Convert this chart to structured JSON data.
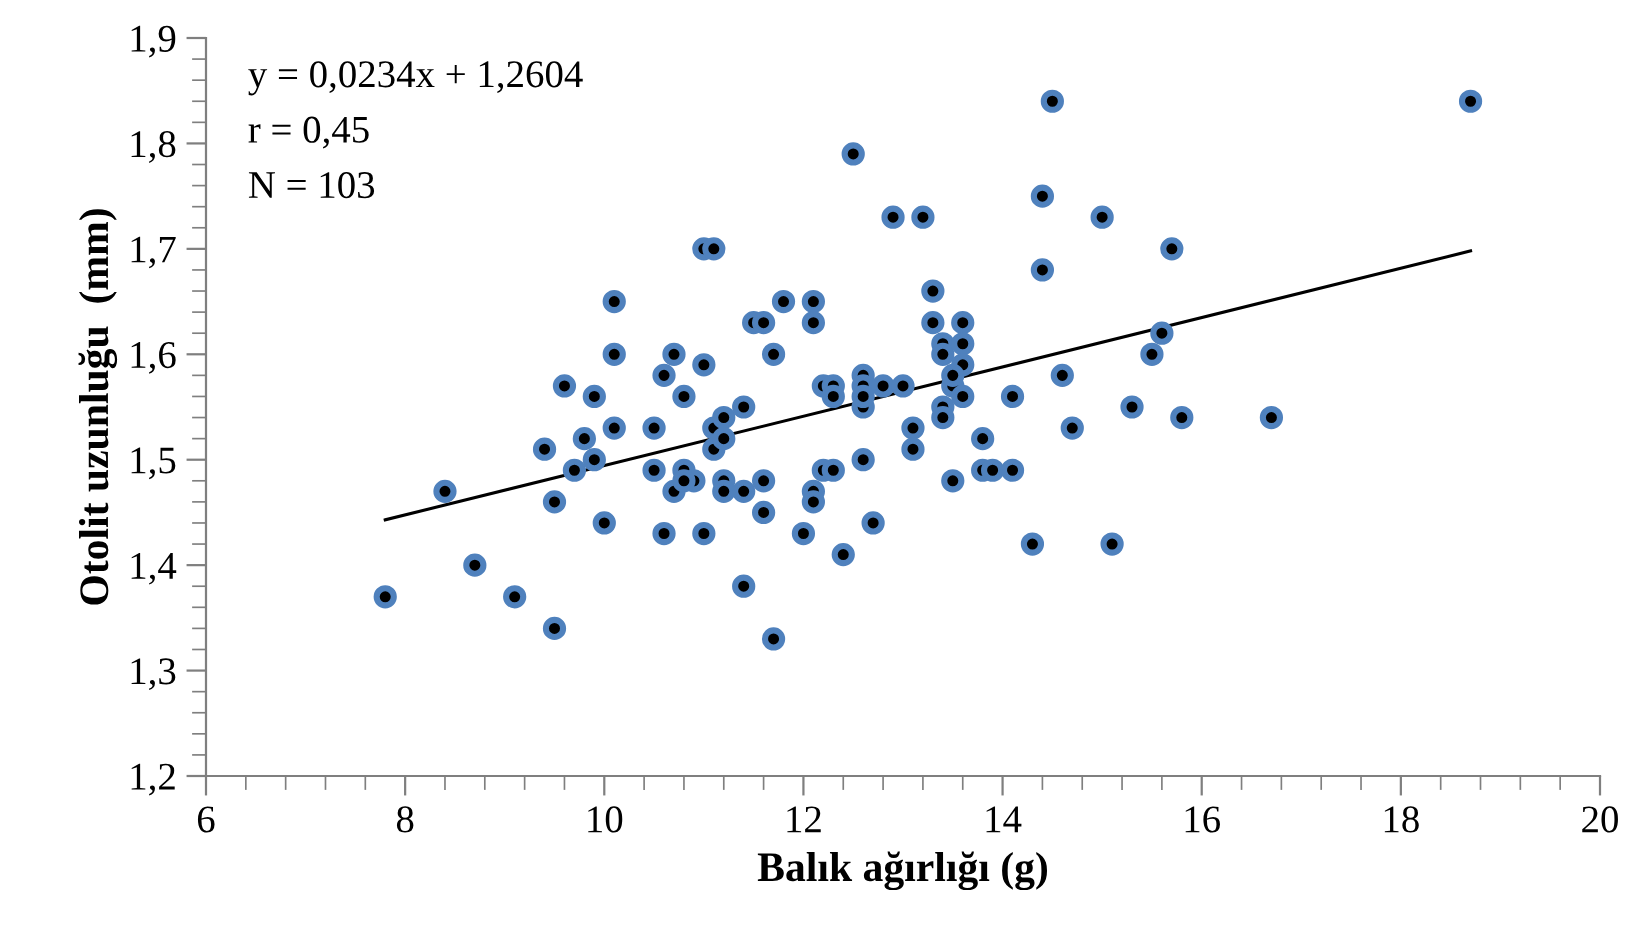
{
  "chart_data": {
    "type": "scatter",
    "xlabel": "Balık ağırlığı (g)",
    "ylabel": "Otolit uzunluğu  (mm)",
    "annotations": [
      "y = 0,0234x + 1,2604",
      "r = 0,45",
      "N = 103"
    ],
    "xlim": [
      6,
      20
    ],
    "xticks": [
      6,
      8,
      10,
      12,
      14,
      16,
      18,
      20
    ],
    "ylim": [
      1.2,
      1.9
    ],
    "yticks": [
      {
        "value": 1.2,
        "label": "1,2"
      },
      {
        "value": 1.3,
        "label": "1,3"
      },
      {
        "value": 1.4,
        "label": "1,4"
      },
      {
        "value": 1.5,
        "label": "1,5"
      },
      {
        "value": 1.6,
        "label": "1,6"
      },
      {
        "value": 1.7,
        "label": "1,7"
      },
      {
        "value": 1.8,
        "label": "1,8"
      },
      {
        "value": 1.9,
        "label": "1,9"
      }
    ],
    "grid": false,
    "legend": false,
    "marker": "circle",
    "series": [
      {
        "color": "#4f81bd",
        "x": [
          7.8,
          8.4,
          8.7,
          9.1,
          9.4,
          9.5,
          9.5,
          9.6,
          9.7,
          9.8,
          9.9,
          9.9,
          10.0,
          10.1,
          10.1,
          10.1,
          10.5,
          10.5,
          10.6,
          10.6,
          10.7,
          10.7,
          10.8,
          10.8,
          10.9,
          11.0,
          11.0,
          11.0,
          11.1,
          11.1,
          11.1,
          11.2,
          11.2,
          11.2,
          11.2,
          11.4,
          11.4,
          11.4,
          11.5,
          11.6,
          11.6,
          11.6,
          11.7,
          11.7,
          11.8,
          12.0,
          12.1,
          12.1,
          12.1,
          12.1,
          12.2,
          12.2,
          12.3,
          12.3,
          12.3,
          12.4,
          12.5,
          12.6,
          12.6,
          12.6,
          12.6,
          12.7,
          12.8,
          12.9,
          13.0,
          13.1,
          13.1,
          13.2,
          13.3,
          13.3,
          13.4,
          13.4,
          13.4,
          13.4,
          13.5,
          13.5,
          13.6,
          13.6,
          13.6,
          13.6,
          13.8,
          13.8,
          13.9,
          14.1,
          14.1,
          14.3,
          14.4,
          14.4,
          14.5,
          14.6,
          14.7,
          15.0,
          15.1,
          15.3,
          15.5,
          15.6,
          15.7,
          15.8,
          16.7,
          18.7,
          12.6,
          13.5,
          10.8
        ],
        "values": [
          1.37,
          1.47,
          1.4,
          1.37,
          1.51,
          1.46,
          1.34,
          1.57,
          1.49,
          1.52,
          1.56,
          1.5,
          1.44,
          1.65,
          1.6,
          1.53,
          1.53,
          1.49,
          1.58,
          1.43,
          1.6,
          1.47,
          1.56,
          1.49,
          1.48,
          1.7,
          1.59,
          1.43,
          1.7,
          1.53,
          1.51,
          1.54,
          1.52,
          1.48,
          1.47,
          1.55,
          1.47,
          1.38,
          1.63,
          1.63,
          1.48,
          1.45,
          1.6,
          1.33,
          1.65,
          1.43,
          1.65,
          1.63,
          1.47,
          1.46,
          1.57,
          1.49,
          1.57,
          1.56,
          1.49,
          1.41,
          1.79,
          1.58,
          1.57,
          1.55,
          1.5,
          1.44,
          1.57,
          1.73,
          1.57,
          1.53,
          1.51,
          1.73,
          1.66,
          1.63,
          1.61,
          1.6,
          1.55,
          1.54,
          1.57,
          1.48,
          1.63,
          1.61,
          1.59,
          1.56,
          1.52,
          1.49,
          1.49,
          1.56,
          1.49,
          1.42,
          1.75,
          1.68,
          1.84,
          1.58,
          1.53,
          1.73,
          1.42,
          1.55,
          1.6,
          1.62,
          1.7,
          1.54,
          1.54,
          1.84,
          1.56,
          1.58,
          1.48
        ]
      },
      {
        "type": "line",
        "color": "#000000",
        "marker": "none",
        "line_style": "solid",
        "x": [
          7.8,
          18.7
        ],
        "values": [
          1.443,
          1.698
        ]
      }
    ]
  }
}
